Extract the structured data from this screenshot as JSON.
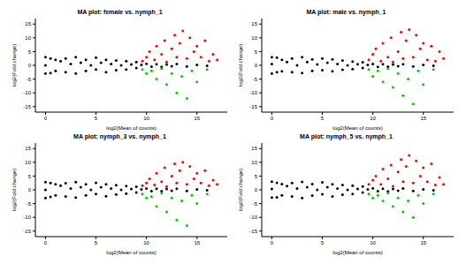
{
  "chart_data": [
    {
      "type": "scatter",
      "title": "MA plot: female vs. nymph_1",
      "x_label": "log2(Mean of counts)",
      "y_label": "log2(Fold change)",
      "xlim": [
        -1,
        18
      ],
      "ylim": [
        -17,
        17
      ],
      "xticks": [
        0,
        5,
        10,
        15
      ],
      "yticks": [
        -15,
        -10,
        -5,
        0,
        5,
        10,
        15
      ],
      "series": [
        {
          "color": "#000000",
          "x": [
            0,
            0,
            0,
            0.5,
            0.5,
            1,
            1,
            1.5,
            2,
            2,
            2.5,
            3,
            3,
            3.5,
            4,
            4,
            4.5,
            5,
            5,
            5.5,
            6,
            6,
            6.5,
            7,
            7,
            7.5,
            8,
            8,
            8.5,
            9,
            9,
            9.5,
            10,
            10.5,
            11,
            11.5,
            12,
            12.5,
            13,
            14,
            15,
            16
          ],
          "y": [
            3,
            -3,
            0,
            2.5,
            -2.8,
            2,
            -2,
            1.5,
            2.5,
            -2.5,
            0.5,
            3,
            -3,
            1,
            2,
            -2,
            0,
            2.8,
            -1.5,
            1,
            2,
            -2.5,
            0.5,
            1.8,
            -1.8,
            0,
            1.5,
            -1.5,
            0.3,
            1.2,
            -1,
            0.2,
            0.6,
            -0.5,
            0.4,
            -0.6,
            0.3,
            -0.3,
            0.5,
            -0.4,
            0.2,
            -0.2
          ]
        },
        {
          "color": "#ff0000",
          "x": [
            9.6,
            10,
            10.3,
            10.8,
            11,
            11.5,
            11.8,
            12,
            12.5,
            12.8,
            13,
            13.3,
            13.6,
            14,
            14.3,
            14.7,
            15,
            15.4,
            15.8,
            16.2,
            16.6,
            17
          ],
          "y": [
            1.5,
            3,
            5,
            2,
            7,
            4,
            9,
            1.2,
            6,
            11,
            3,
            8,
            12.5,
            2.5,
            10,
            5,
            7,
            3,
            9,
            1.5,
            4,
            2
          ]
        },
        {
          "color": "#00cc00",
          "x": [
            9.6,
            10,
            10.5,
            11,
            11.5,
            12,
            12.5,
            13,
            13.5,
            14,
            14.5,
            15,
            16
          ],
          "y": [
            -1.5,
            -3,
            -2,
            -5,
            -1.2,
            -7,
            -3,
            -10,
            -4,
            -12,
            -2,
            -6,
            -1.5
          ]
        }
      ]
    },
    {
      "type": "scatter",
      "title": "MA plot: male vs. nymph_1",
      "x_label": "log2(Mean of counts)",
      "y_label": "log2(Fold change)",
      "xlim": [
        -1,
        18
      ],
      "ylim": [
        -17,
        17
      ],
      "xticks": [
        0,
        5,
        10,
        15
      ],
      "yticks": [
        -15,
        -10,
        -5,
        0,
        5,
        10,
        15
      ],
      "series": [
        {
          "color": "#000000",
          "x": [
            0,
            0,
            0,
            0.5,
            0.5,
            1,
            1,
            1.5,
            2,
            2,
            2.5,
            3,
            3,
            3.5,
            4,
            4,
            4.5,
            5,
            5,
            5.5,
            6,
            6,
            6.5,
            7,
            7,
            7.5,
            8,
            8,
            8.5,
            9,
            9,
            9.5,
            10,
            10.5,
            11,
            11.5,
            12,
            12.5,
            13,
            14,
            15,
            16
          ],
          "y": [
            3,
            -3,
            0.5,
            2.8,
            -2.5,
            2,
            -2.2,
            1.2,
            2.5,
            -2.5,
            0,
            3,
            -2.8,
            1.2,
            2.2,
            -2,
            0.3,
            2.5,
            -1.8,
            1,
            2.2,
            -2.2,
            0.5,
            1.8,
            -1.6,
            0,
            1.4,
            -1.4,
            0.4,
            1.1,
            -1,
            0.2,
            0.5,
            -0.6,
            0.4,
            -0.5,
            0.3,
            -0.3,
            0.4,
            -0.4,
            0.2,
            -0.2
          ]
        },
        {
          "color": "#ff0000",
          "x": [
            9.6,
            10,
            10.3,
            10.8,
            11,
            11.5,
            11.8,
            12,
            12.5,
            12.8,
            13,
            13.3,
            13.6,
            14,
            14.3,
            14.7,
            15,
            15.4,
            15.8,
            16.2,
            16.6,
            17
          ],
          "y": [
            2,
            4,
            6,
            1.5,
            8,
            3,
            10,
            1.2,
            5,
            12,
            2.5,
            9,
            13,
            3,
            11,
            6,
            8,
            2,
            7,
            1.5,
            5,
            2.5
          ]
        },
        {
          "color": "#00cc00",
          "x": [
            9.6,
            10,
            10.5,
            11,
            11.5,
            12,
            12.5,
            13,
            13.5,
            14,
            14.5,
            15,
            16
          ],
          "y": [
            -1.5,
            -4,
            -2,
            -6,
            -1.2,
            -8,
            -3,
            -11,
            -5,
            -14,
            -2,
            -7,
            -1.5
          ]
        }
      ]
    },
    {
      "type": "scatter",
      "title": "MA plot: nymph_3 vs. nymph_1",
      "x_label": "log2(Mean of counts)",
      "y_label": "log2(Fold change)",
      "xlim": [
        -1,
        18
      ],
      "ylim": [
        -17,
        17
      ],
      "xticks": [
        0,
        5,
        10,
        15
      ],
      "yticks": [
        -15,
        -10,
        -5,
        0,
        5,
        10,
        15
      ],
      "series": [
        {
          "color": "#000000",
          "x": [
            0,
            0,
            0,
            0.5,
            0.5,
            1,
            1,
            1.5,
            2,
            2,
            2.5,
            3,
            3,
            3.5,
            4,
            4,
            4.5,
            5,
            5,
            5.5,
            6,
            6,
            6.5,
            7,
            7,
            7.5,
            8,
            8,
            8.5,
            9,
            9,
            9.5,
            10,
            10.5,
            11,
            11.5,
            12,
            12.5,
            13,
            14,
            15,
            16
          ],
          "y": [
            2.8,
            -3,
            0,
            2.5,
            -2.6,
            2,
            -2,
            1.5,
            2.4,
            -2.4,
            0.5,
            2.8,
            -2.8,
            1,
            2,
            -2,
            0,
            2.6,
            -1.5,
            1,
            2,
            -2.3,
            0.5,
            1.7,
            -1.7,
            0,
            1.4,
            -1.4,
            0.3,
            1.1,
            -1,
            0.2,
            0.5,
            -0.5,
            0.4,
            -0.5,
            0.3,
            -0.3,
            0.4,
            -0.4,
            0.2,
            -0.2
          ]
        },
        {
          "color": "#ff0000",
          "x": [
            9.6,
            10,
            10.3,
            10.8,
            11,
            11.5,
            11.8,
            12,
            12.5,
            12.8,
            13,
            13.3,
            13.6,
            14,
            14.3,
            14.7,
            15,
            15.4,
            15.8,
            16.2,
            16.6,
            17
          ],
          "y": [
            1.5,
            2.5,
            4,
            1.8,
            6,
            3,
            8,
            1.2,
            5,
            9.5,
            2.5,
            7,
            10,
            2,
            8.5,
            4,
            6,
            2.5,
            7,
            1.5,
            3.5,
            2
          ]
        },
        {
          "color": "#00cc00",
          "x": [
            9.6,
            10,
            10.5,
            11,
            11.5,
            12,
            12.5,
            13,
            13.5,
            14,
            14.5,
            15,
            16
          ],
          "y": [
            -1.5,
            -3,
            -2.5,
            -6,
            -1.2,
            -8,
            -3,
            -11,
            -4,
            -13,
            -2,
            -5,
            -1.5
          ]
        }
      ]
    },
    {
      "type": "scatter",
      "title": "MA plot: nymph_5 vs. nymph_1",
      "x_label": "log2(Mean of counts)",
      "y_label": "log2(Fold change)",
      "xlim": [
        -1,
        18
      ],
      "ylim": [
        -17,
        17
      ],
      "xticks": [
        0,
        5,
        10,
        15
      ],
      "yticks": [
        -15,
        -10,
        -5,
        0,
        5,
        10,
        15
      ],
      "series": [
        {
          "color": "#000000",
          "x": [
            0,
            0,
            0,
            0.5,
            0.5,
            1,
            1,
            1.5,
            2,
            2,
            2.5,
            3,
            3,
            3.5,
            4,
            4,
            4.5,
            5,
            5,
            5.5,
            6,
            6,
            6.5,
            7,
            7,
            7.5,
            8,
            8,
            8.5,
            9,
            9,
            9.5,
            10,
            10.5,
            11,
            11.5,
            12,
            12.5,
            13,
            14,
            15,
            16
          ],
          "y": [
            3,
            -2.8,
            0.3,
            2.6,
            -2.7,
            2.1,
            -2,
            1.4,
            2.5,
            -2.4,
            0.5,
            2.9,
            -3,
            1,
            2.1,
            -2.1,
            0,
            2.7,
            -1.6,
            1,
            2,
            -2.4,
            0.5,
            1.8,
            -1.8,
            0,
            1.5,
            -1.5,
            0.3,
            1.2,
            -1,
            0.2,
            0.6,
            -0.5,
            0.4,
            -0.6,
            0.3,
            -0.3,
            0.5,
            -0.4,
            0.2,
            -0.2
          ]
        },
        {
          "color": "#ff0000",
          "x": [
            9.6,
            10,
            10.3,
            10.8,
            11,
            11.5,
            11.8,
            12,
            12.5,
            12.8,
            13,
            13.3,
            13.6,
            14,
            14.3,
            14.7,
            15,
            15.4,
            15.8,
            16.2,
            16.6,
            17
          ],
          "y": [
            2,
            3.5,
            5,
            2,
            7.5,
            4,
            9,
            1.3,
            6.5,
            11,
            3,
            8.5,
            12.5,
            2.5,
            10.5,
            5,
            8,
            3,
            9.5,
            1.8,
            4.5,
            2
          ]
        },
        {
          "color": "#00cc00",
          "x": [
            9.6,
            10,
            10.5,
            11,
            11.5,
            12,
            12.5,
            13,
            13.5,
            14,
            14.5,
            15,
            16
          ],
          "y": [
            -1.5,
            -3,
            -2,
            -4,
            -1.2,
            -6,
            -3,
            -8,
            -4,
            -10,
            -2,
            -5,
            -1.5
          ]
        }
      ]
    }
  ]
}
